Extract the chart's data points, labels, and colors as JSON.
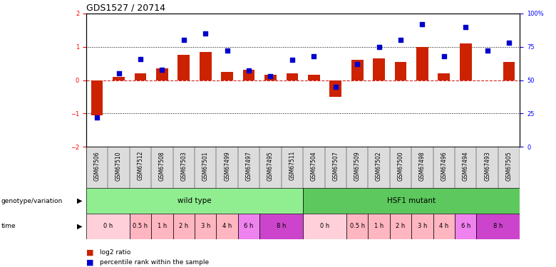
{
  "title": "GDS1527 / 20714",
  "samples": [
    "GSM67506",
    "GSM67510",
    "GSM67512",
    "GSM67508",
    "GSM67503",
    "GSM67501",
    "GSM67499",
    "GSM67497",
    "GSM67495",
    "GSM67511",
    "GSM67504",
    "GSM67507",
    "GSM67509",
    "GSM67502",
    "GSM67500",
    "GSM67498",
    "GSM67496",
    "GSM67494",
    "GSM67493",
    "GSM67505"
  ],
  "log2_ratio": [
    -1.05,
    0.1,
    0.2,
    0.35,
    0.75,
    0.85,
    0.25,
    0.3,
    0.15,
    0.2,
    0.15,
    -0.5,
    0.6,
    0.65,
    0.55,
    1.0,
    0.2,
    1.1,
    0.0,
    0.55
  ],
  "percentile": [
    22,
    55,
    66,
    58,
    80,
    85,
    72,
    57,
    53,
    65,
    68,
    45,
    62,
    75,
    80,
    92,
    68,
    90,
    72,
    78
  ],
  "genotype_groups": [
    {
      "label": "wild type",
      "start": 0,
      "end": 10,
      "color": "#90EE90"
    },
    {
      "label": "HSF1 mutant",
      "start": 10,
      "end": 20,
      "color": "#5DC85D"
    }
  ],
  "time_segments": [
    {
      "label": "0 h",
      "start": 0,
      "end": 2,
      "color": "#FFD0DA"
    },
    {
      "label": "0.5 h",
      "start": 2,
      "end": 3,
      "color": "#FFB6C1"
    },
    {
      "label": "1 h",
      "start": 3,
      "end": 4,
      "color": "#FFB6C1"
    },
    {
      "label": "2 h",
      "start": 4,
      "end": 5,
      "color": "#FFB6C1"
    },
    {
      "label": "3 h",
      "start": 5,
      "end": 6,
      "color": "#FFB6C1"
    },
    {
      "label": "4 h",
      "start": 6,
      "end": 7,
      "color": "#FFB6C1"
    },
    {
      "label": "6 h",
      "start": 7,
      "end": 8,
      "color": "#EE82EE"
    },
    {
      "label": "8 h",
      "start": 8,
      "end": 10,
      "color": "#CC44CC"
    },
    {
      "label": "0 h",
      "start": 10,
      "end": 12,
      "color": "#FFD0DA"
    },
    {
      "label": "0.5 h",
      "start": 12,
      "end": 13,
      "color": "#FFB6C1"
    },
    {
      "label": "1 h",
      "start": 13,
      "end": 14,
      "color": "#FFB6C1"
    },
    {
      "label": "2 h",
      "start": 14,
      "end": 15,
      "color": "#FFB6C1"
    },
    {
      "label": "3 h",
      "start": 15,
      "end": 16,
      "color": "#FFB6C1"
    },
    {
      "label": "4 h",
      "start": 16,
      "end": 17,
      "color": "#FFB6C1"
    },
    {
      "label": "6 h",
      "start": 17,
      "end": 18,
      "color": "#EE82EE"
    },
    {
      "label": "8 h",
      "start": 18,
      "end": 20,
      "color": "#CC44CC"
    }
  ],
  "bar_color": "#CC2200",
  "dot_color": "#0000CC",
  "ylim_left": [
    -2,
    2
  ],
  "ylim_right": [
    0,
    100
  ],
  "yticks_left": [
    -2,
    -1,
    0,
    1,
    2
  ],
  "yticks_right": [
    0,
    25,
    50,
    75,
    100
  ],
  "yticklabels_right": [
    "0",
    "25",
    "50",
    "75",
    "100%"
  ],
  "hline_color_zero": "#CC0000",
  "hline_color_dotted": "#000000",
  "background_color": "#ffffff",
  "legend_log2_color": "#CC2200",
  "legend_pct_color": "#0000CC",
  "label_fontsize": 6.5,
  "tick_fontsize": 6.0,
  "sample_fontsize": 5.5
}
